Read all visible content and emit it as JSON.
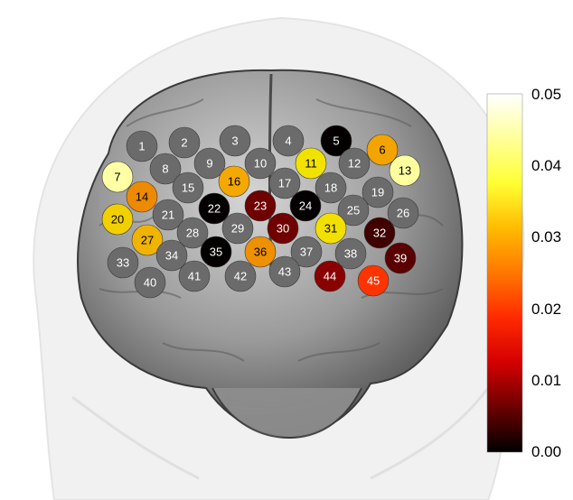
{
  "colorbar": {
    "ticks": [
      "0.05",
      "0.04",
      "0.03",
      "0.02",
      "0.01",
      "0.00"
    ],
    "stops": [
      "#000000",
      "#6b0000",
      "#d40000",
      "#ff2a00",
      "#ff7700",
      "#ffbb00",
      "#ffff33",
      "#ffff99",
      "#ffffff"
    ]
  },
  "colors": {
    "inactive": "#6b6b6b",
    "label_light": "#ffffff",
    "label_dark": "#000000"
  },
  "channels": [
    {
      "id": "1",
      "color": "#6b6b6b"
    },
    {
      "id": "2",
      "color": "#6b6b6b"
    },
    {
      "id": "3",
      "color": "#6b6b6b"
    },
    {
      "id": "4",
      "color": "#6b6b6b"
    },
    {
      "id": "5",
      "color": "#050000"
    },
    {
      "id": "6",
      "color": "#f3a400"
    },
    {
      "id": "7",
      "color": "#ffffa6"
    },
    {
      "id": "8",
      "color": "#6b6b6b"
    },
    {
      "id": "9",
      "color": "#6b6b6b"
    },
    {
      "id": "10",
      "color": "#6b6b6b"
    },
    {
      "id": "11",
      "color": "#f2e200"
    },
    {
      "id": "12",
      "color": "#6b6b6b"
    },
    {
      "id": "13",
      "color": "#ffffa0"
    },
    {
      "id": "14",
      "color": "#ee8a00"
    },
    {
      "id": "15",
      "color": "#6b6b6b"
    },
    {
      "id": "16",
      "color": "#f5a800"
    },
    {
      "id": "17",
      "color": "#6b6b6b"
    },
    {
      "id": "18",
      "color": "#6b6b6b"
    },
    {
      "id": "19",
      "color": "#6b6b6b"
    },
    {
      "id": "20",
      "color": "#f2d000"
    },
    {
      "id": "21",
      "color": "#6b6b6b"
    },
    {
      "id": "22",
      "color": "#050000"
    },
    {
      "id": "23",
      "color": "#6e0000"
    },
    {
      "id": "24",
      "color": "#050000"
    },
    {
      "id": "25",
      "color": "#6b6b6b"
    },
    {
      "id": "26",
      "color": "#6b6b6b"
    },
    {
      "id": "27",
      "color": "#f0b400"
    },
    {
      "id": "28",
      "color": "#6b6b6b"
    },
    {
      "id": "29",
      "color": "#6b6b6b"
    },
    {
      "id": "30",
      "color": "#700000"
    },
    {
      "id": "31",
      "color": "#f2e000"
    },
    {
      "id": "32",
      "color": "#400000"
    },
    {
      "id": "33",
      "color": "#6b6b6b"
    },
    {
      "id": "34",
      "color": "#6b6b6b"
    },
    {
      "id": "35",
      "color": "#050000"
    },
    {
      "id": "36",
      "color": "#ee9000"
    },
    {
      "id": "37",
      "color": "#6b6b6b"
    },
    {
      "id": "38",
      "color": "#6b6b6b"
    },
    {
      "id": "39",
      "color": "#5a0000"
    },
    {
      "id": "40",
      "color": "#6b6b6b"
    },
    {
      "id": "41",
      "color": "#6b6b6b"
    },
    {
      "id": "42",
      "color": "#6b6b6b"
    },
    {
      "id": "43",
      "color": "#6b6b6b"
    },
    {
      "id": "44",
      "color": "#8a0000"
    },
    {
      "id": "45",
      "color": "#ff3300"
    }
  ]
}
